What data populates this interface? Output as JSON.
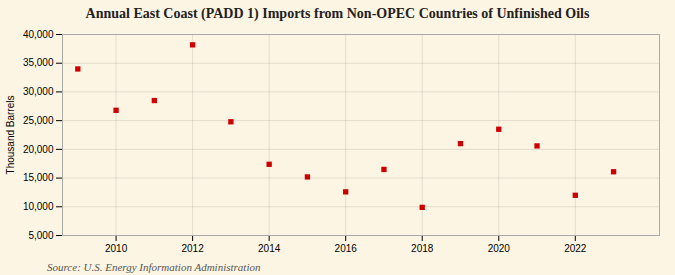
{
  "chart_data": {
    "type": "scatter",
    "title": "Annual East Coast (PADD 1) Imports from Non-OPEC Countries of Unfinished Oils",
    "ylabel": "Thousand Barrels",
    "source": "Source: U.S. Energy Information Administration",
    "x": [
      2009,
      2010,
      2011,
      2012,
      2013,
      2014,
      2015,
      2016,
      2017,
      2018,
      2019,
      2020,
      2021,
      2022,
      2023
    ],
    "values": [
      34000,
      26800,
      28500,
      38200,
      24800,
      17400,
      15200,
      12600,
      16500,
      9900,
      21000,
      23500,
      20600,
      12000,
      16100
    ],
    "color": "#cc0000",
    "marker": "square",
    "xlim": [
      2008.6,
      2024.2
    ],
    "xticks": [
      2010,
      2012,
      2014,
      2016,
      2018,
      2020,
      2022
    ],
    "ylim": [
      5000,
      40000
    ],
    "yticks": [
      {
        "value": 5000,
        "label": "5,000"
      },
      {
        "value": 10000,
        "label": "10,000"
      },
      {
        "value": 15000,
        "label": "15,000"
      },
      {
        "value": 20000,
        "label": "20,000"
      },
      {
        "value": 25000,
        "label": "25,000"
      },
      {
        "value": 30000,
        "label": "30,000"
      },
      {
        "value": 35000,
        "label": "35,000"
      },
      {
        "value": 40000,
        "label": "40,000"
      }
    ],
    "grid": true
  }
}
